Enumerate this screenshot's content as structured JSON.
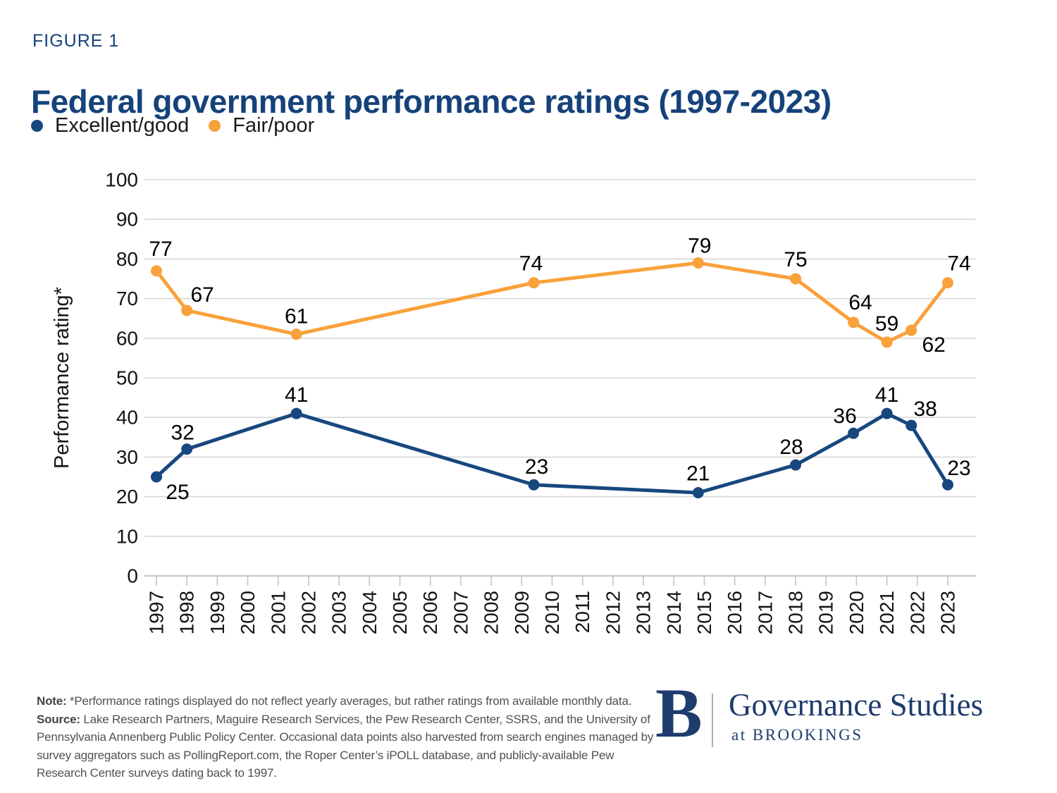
{
  "figure_label": "FIGURE 1",
  "title": "Federal government performance ratings (1997-2023)",
  "legend": [
    {
      "label": "Excellent/good",
      "color": "#17477F"
    },
    {
      "label": "Fair/poor",
      "color": "#F9A13B"
    }
  ],
  "chart_data": {
    "type": "line",
    "title": "Federal government performance ratings (1997-2023)",
    "xlabel": "",
    "ylabel": "Performance rating*",
    "ylim": [
      0,
      100
    ],
    "ytick_step": 10,
    "grid": true,
    "legend_position": "top-left",
    "years": [
      1997,
      1998,
      1999,
      2000,
      2001,
      2002,
      2003,
      2004,
      2005,
      2006,
      2007,
      2008,
      2009,
      2010,
      2011,
      2012,
      2013,
      2014,
      2015,
      2016,
      2017,
      2018,
      2019,
      2020,
      2021,
      2022,
      2023
    ],
    "series": [
      {
        "name": "Excellent/good",
        "color": "#17477F",
        "points": [
          {
            "x": 1997,
            "y": 25,
            "dx": 30,
            "dy": 22
          },
          {
            "x": 1998,
            "y": 32,
            "dx": -6,
            "dy": -23
          },
          {
            "x": 2001.6,
            "y": 41,
            "dx": 0,
            "dy": -26
          },
          {
            "x": 2009.4,
            "y": 23,
            "dx": 4,
            "dy": -25
          },
          {
            "x": 2014.8,
            "y": 21,
            "dx": 0,
            "dy": -27
          },
          {
            "x": 2018,
            "y": 28,
            "dx": -6,
            "dy": -25
          },
          {
            "x": 2019.9,
            "y": 36,
            "dx": -12,
            "dy": -24
          },
          {
            "x": 2021,
            "y": 41,
            "dx": 0,
            "dy": -26
          },
          {
            "x": 2021.8,
            "y": 38,
            "dx": 20,
            "dy": -23
          },
          {
            "x": 2023,
            "y": 23,
            "dx": 16,
            "dy": -23
          }
        ]
      },
      {
        "name": "Fair/poor",
        "color": "#F9A13B",
        "points": [
          {
            "x": 1997,
            "y": 77,
            "dx": 6,
            "dy": -31
          },
          {
            "x": 1998,
            "y": 67,
            "dx": 22,
            "dy": -22
          },
          {
            "x": 2001.6,
            "y": 61,
            "dx": 0,
            "dy": -25
          },
          {
            "x": 2009.4,
            "y": 74,
            "dx": -4,
            "dy": -27
          },
          {
            "x": 2014.8,
            "y": 79,
            "dx": 2,
            "dy": -24
          },
          {
            "x": 2018,
            "y": 75,
            "dx": 0,
            "dy": -27
          },
          {
            "x": 2019.9,
            "y": 64,
            "dx": 10,
            "dy": -28
          },
          {
            "x": 2021,
            "y": 59,
            "dx": 0,
            "dy": -26
          },
          {
            "x": 2021.8,
            "y": 62,
            "dx": 32,
            "dy": 21
          },
          {
            "x": 2023,
            "y": 74,
            "dx": 16,
            "dy": -27
          }
        ]
      }
    ]
  },
  "footer": {
    "note_label": "Note:",
    "note_text": " *Performance ratings displayed do not reflect yearly averages, but rather ratings from available monthly data.",
    "source_label": "Source:",
    "source_text": " Lake Research Partners, Maguire Research Services, the Pew Research Center, SSRS, and the University of Pennsylvania Annenberg Public Policy Center. Occasional data points also harvested from search engines managed by survey aggregators such as PollingReport.com, the Roper Center’s iPOLL database, and publicly-available Pew Research Center surveys dating back to 1997."
  },
  "logo": {
    "monogram": "B",
    "org": "Governance Studies",
    "sub": "at BROOKINGS"
  },
  "colors": {
    "title_navy": "#15427A",
    "series_blue": "#17477F",
    "series_orange": "#F9A13B",
    "gridline": "#D8D8D8",
    "axis": "#C5C5C5",
    "tick_text": "#141414",
    "footnote_gray": "#515151",
    "logo_navy": "#1E3C6D"
  }
}
